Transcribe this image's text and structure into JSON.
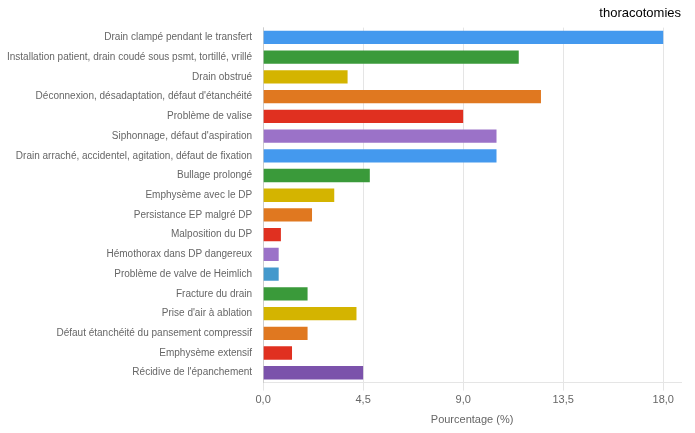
{
  "chart_data": {
    "type": "bar",
    "orientation": "horizontal",
    "title": "thoracotomies",
    "xlabel": "Pourcentage (%)",
    "categories": [
      "Récidive de l'épanchement",
      "Emphysème extensif",
      "Défaut étanchéité du pansement compressif",
      "Prise d'air à ablation",
      "Fracture du drain",
      "Problème de valve de Heimlich",
      "Hémothorax dans DP dangereux",
      "Malposition du DP",
      "Persistance EP malgré DP",
      "Emphysème avec le DP",
      "Bullage prolongé",
      "Drain arraché, accidentel, agitation, défaut de fixation",
      "Siphonnage, défaut d'aspiration",
      "Problème de valise",
      "Déconnexion, désadaptation, défaut d'étanchéité",
      "Drain obstrué",
      "Installation patient, drain coudé sous psmt, tortillé, vrillé",
      "Drain clampé pendant le transfert"
    ],
    "values": [
      4.5,
      1.3,
      2.0,
      4.2,
      2.0,
      0.7,
      0.7,
      0.8,
      2.2,
      3.2,
      4.8,
      10.5,
      10.5,
      9.0,
      12.5,
      3.8,
      11.5,
      18.0
    ],
    "colors": [
      "#7B52AB",
      "#E03020",
      "#E07820",
      "#D4B400",
      "#3A9A3A",
      "#4499CC",
      "#9B72C8",
      "#E03020",
      "#E07820",
      "#D4B400",
      "#3A9A3A",
      "#4499EE",
      "#9B72C8",
      "#E03020",
      "#E07820",
      "#D4B400",
      "#3A9A3A",
      "#4499EE"
    ],
    "xlim": [
      0,
      18.8
    ],
    "xticks": [
      {
        "value": 0.0,
        "label": "0,0"
      },
      {
        "value": 4.5,
        "label": "4,5"
      },
      {
        "value": 9.0,
        "label": "9,0"
      },
      {
        "value": 13.5,
        "label": "13,5"
      },
      {
        "value": 18.0,
        "label": "18,0"
      }
    ],
    "grid": true
  }
}
